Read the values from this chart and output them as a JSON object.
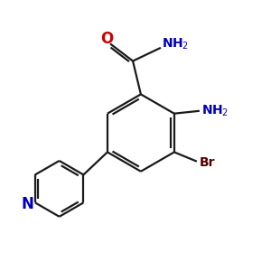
{
  "background_color": "#ffffff",
  "bond_color": "#1a1a1a",
  "o_color": "#cc0000",
  "n_color": "#0000bb",
  "br_color": "#550000",
  "line_width": 1.6,
  "figsize": [
    3.0,
    3.0
  ],
  "dpi": 100,
  "xlim": [
    0,
    10
  ],
  "ylim": [
    0,
    10
  ]
}
